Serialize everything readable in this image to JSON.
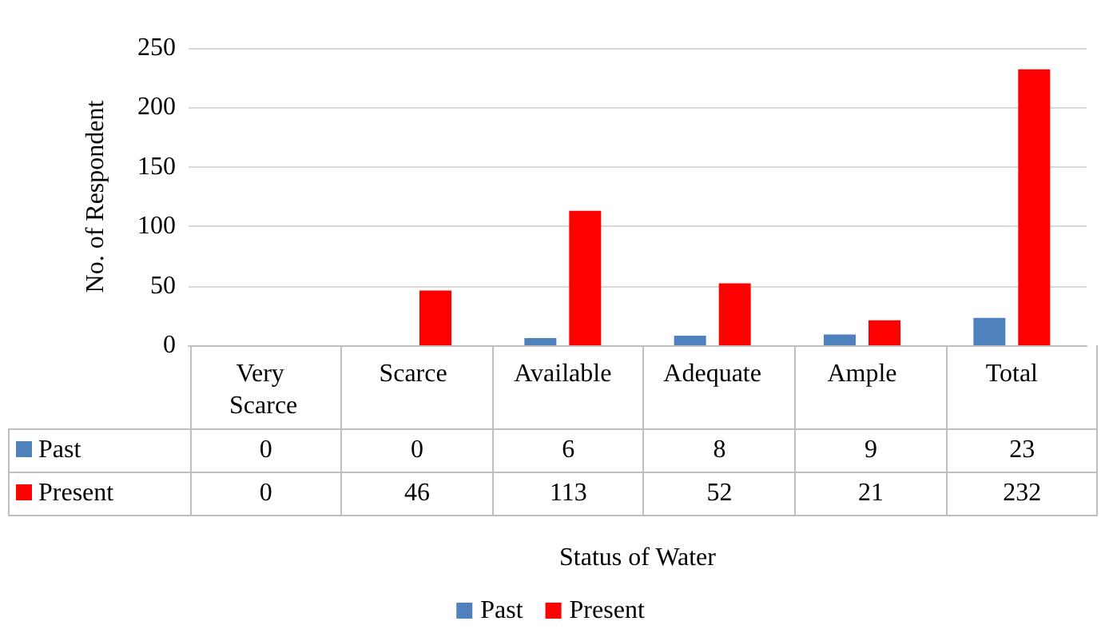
{
  "chart_data": {
    "type": "bar",
    "xlabel": "Status of Water",
    "ylabel": "No. of Respondent",
    "categories": [
      "Very Scarce",
      "Scarce",
      "Available",
      "Adequate",
      "Ample",
      "Total"
    ],
    "series": [
      {
        "name": "Past",
        "color": "#4f81bd",
        "values": [
          0,
          0,
          6,
          8,
          9,
          23
        ]
      },
      {
        "name": "Present",
        "color": "#ff0000",
        "values": [
          0,
          46,
          113,
          52,
          21,
          232
        ]
      }
    ],
    "ylim": [
      0,
      250
    ],
    "yticks": [
      0,
      50,
      100,
      150,
      200,
      250
    ],
    "grid": "y",
    "legend": "bottom",
    "data_labels": true
  }
}
